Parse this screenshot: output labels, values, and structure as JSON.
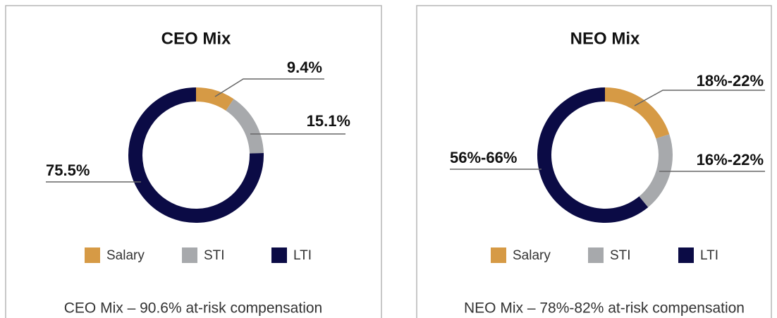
{
  "chart_data": [
    {
      "type": "pie",
      "title": "CEO Mix",
      "categories": [
        "Salary",
        "STI",
        "LTI"
      ],
      "values": [
        9.4,
        15.1,
        75.5
      ],
      "value_labels": [
        "9.4%",
        "15.1%",
        "75.5%"
      ],
      "colors": [
        "#d69a45",
        "#a7a9ac",
        "#0b0b45"
      ],
      "caption": "CEO Mix – 90.6% at-risk compensation"
    },
    {
      "type": "pie",
      "title": "NEO Mix",
      "categories": [
        "Salary",
        "STI",
        "LTI"
      ],
      "values": [
        20,
        19,
        61
      ],
      "value_labels": [
        "18%-22%",
        "16%-22%",
        "56%-66%"
      ],
      "colors": [
        "#d69a45",
        "#a7a9ac",
        "#0b0b45"
      ],
      "caption": "NEO Mix – 78%-82% at-risk compensation"
    }
  ]
}
